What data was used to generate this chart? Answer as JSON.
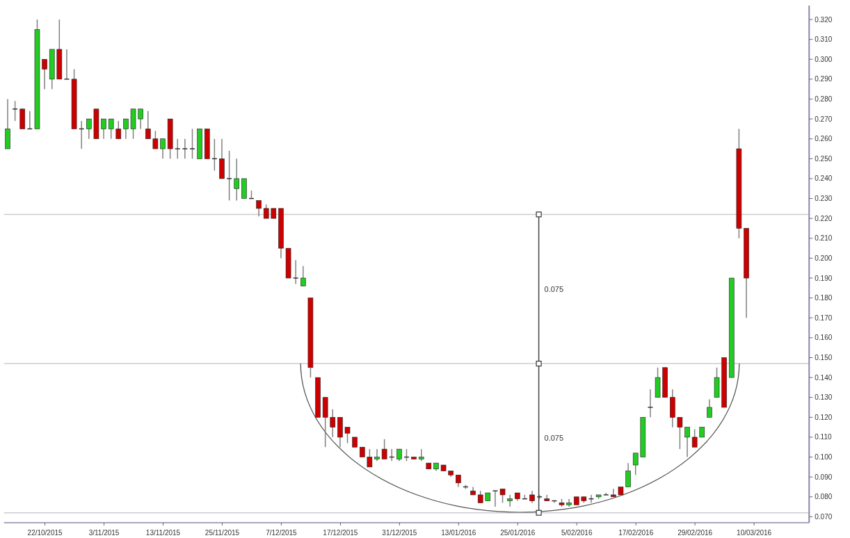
{
  "chart_data": {
    "type": "candlestick",
    "categories": [
      null,
      null,
      null,
      null,
      null,
      "22/10/2015",
      null,
      null,
      null,
      null,
      null,
      null,
      null,
      "3/11/2015",
      null,
      null,
      null,
      null,
      null,
      null,
      null,
      "13/11/2015",
      null,
      null,
      null,
      null,
      null,
      null,
      null,
      "25/11/2015",
      null,
      null,
      null,
      null,
      null,
      null,
      null,
      "7/12/2015",
      null,
      null,
      null,
      null,
      null,
      null,
      null,
      "17/12/2015",
      null,
      null,
      null,
      null,
      null,
      null,
      null,
      "31/12/2015",
      null,
      null,
      null,
      null,
      null,
      null,
      null,
      "13/01/2016",
      null,
      null,
      null,
      null,
      null,
      null,
      null,
      "25/01/2016",
      null,
      null,
      null,
      null,
      null,
      null,
      null,
      "5/02/2016",
      null,
      null,
      null,
      null,
      null,
      null,
      null,
      "17/02/2016",
      null,
      null,
      null,
      null,
      null,
      null,
      null,
      "29/02/2016",
      null,
      null,
      null,
      null,
      null,
      null,
      null,
      "10/03/2016",
      null,
      null,
      null,
      null,
      null,
      null,
      null
    ],
    "ohlc": [
      [
        0.255,
        0.28,
        0.255,
        0.265
      ],
      [
        0.275,
        0.279,
        0.269,
        0.275
      ],
      [
        0.275,
        0.275,
        0.265,
        0.265
      ],
      [
        0.265,
        0.274,
        0.265,
        0.265
      ],
      [
        0.265,
        0.32,
        0.265,
        0.315
      ],
      [
        0.3,
        0.3,
        0.285,
        0.295
      ],
      [
        0.29,
        0.305,
        0.285,
        0.305
      ],
      [
        0.305,
        0.32,
        0.29,
        0.29
      ],
      [
        0.29,
        0.305,
        0.29,
        0.29
      ],
      [
        0.29,
        0.295,
        0.265,
        0.265
      ],
      [
        0.265,
        0.269,
        0.255,
        0.265
      ],
      [
        0.265,
        0.27,
        0.26,
        0.27
      ],
      [
        0.275,
        0.275,
        0.26,
        0.26
      ],
      [
        0.265,
        0.27,
        0.26,
        0.27
      ],
      [
        0.265,
        0.27,
        0.26,
        0.27
      ],
      [
        0.265,
        0.269,
        0.26,
        0.26
      ],
      [
        0.265,
        0.27,
        0.26,
        0.27
      ],
      [
        0.265,
        0.275,
        0.26,
        0.275
      ],
      [
        0.27,
        0.275,
        0.265,
        0.275
      ],
      [
        0.265,
        0.274,
        0.26,
        0.26
      ],
      [
        0.26,
        0.264,
        0.255,
        0.255
      ],
      [
        0.255,
        0.26,
        0.25,
        0.26
      ],
      [
        0.27,
        0.27,
        0.25,
        0.255
      ],
      [
        0.255,
        0.26,
        0.25,
        0.255
      ],
      [
        0.255,
        0.26,
        0.25,
        0.255
      ],
      [
        0.255,
        0.265,
        0.25,
        0.255
      ],
      [
        0.25,
        0.265,
        0.25,
        0.265
      ],
      [
        0.265,
        0.265,
        0.25,
        0.25
      ],
      [
        0.25,
        0.26,
        0.244,
        0.25
      ],
      [
        0.25,
        0.26,
        0.24,
        0.24
      ],
      [
        0.24,
        0.254,
        0.229,
        0.24
      ],
      [
        0.235,
        0.25,
        0.229,
        0.24
      ],
      [
        0.23,
        0.24,
        0.23,
        0.24
      ],
      [
        0.23,
        0.234,
        0.23,
        0.23
      ],
      [
        0.229,
        0.229,
        0.221,
        0.225
      ],
      [
        0.225,
        0.227,
        0.22,
        0.22
      ],
      [
        0.225,
        0.225,
        0.22,
        0.22
      ],
      [
        0.225,
        0.225,
        0.2,
        0.205
      ],
      [
        0.205,
        0.205,
        0.19,
        0.19
      ],
      [
        0.19,
        0.199,
        0.187,
        0.19
      ],
      [
        0.186,
        0.196,
        0.186,
        0.19
      ],
      [
        0.18,
        0.18,
        0.14,
        0.145
      ],
      [
        0.14,
        0.14,
        0.12,
        0.12
      ],
      [
        0.13,
        0.13,
        0.105,
        0.12
      ],
      [
        0.12,
        0.124,
        0.11,
        0.115
      ],
      [
        0.12,
        0.12,
        0.105,
        0.11
      ],
      [
        0.115,
        0.115,
        0.107,
        0.112
      ],
      [
        0.11,
        0.11,
        0.105,
        0.105
      ],
      [
        0.105,
        0.105,
        0.1,
        0.1
      ],
      [
        0.1,
        0.104,
        0.095,
        0.095
      ],
      [
        0.099,
        0.104,
        0.098,
        0.1
      ],
      [
        0.104,
        0.109,
        0.099,
        0.099
      ],
      [
        0.1,
        0.104,
        0.098,
        0.1
      ],
      [
        0.099,
        0.104,
        0.098,
        0.104
      ],
      [
        0.1,
        0.104,
        0.098,
        0.1
      ],
      [
        0.1,
        0.1,
        0.099,
        0.099
      ],
      [
        0.099,
        0.104,
        0.098,
        0.1
      ],
      [
        0.097,
        0.097,
        0.094,
        0.094
      ],
      [
        0.094,
        0.097,
        0.093,
        0.097
      ],
      [
        0.096,
        0.096,
        0.093,
        0.093
      ],
      [
        0.093,
        0.093,
        0.09,
        0.091
      ],
      [
        0.091,
        0.091,
        0.085,
        0.087
      ],
      [
        0.085,
        0.086,
        0.084,
        0.085
      ],
      [
        0.083,
        0.085,
        0.081,
        0.081
      ],
      [
        0.081,
        0.083,
        0.077,
        0.077
      ],
      [
        0.078,
        0.082,
        0.078,
        0.082
      ],
      [
        0.083,
        0.083,
        0.075,
        0.083
      ],
      [
        0.084,
        0.084,
        0.077,
        0.081
      ],
      [
        0.078,
        0.081,
        0.075,
        0.079
      ],
      [
        0.082,
        0.082,
        0.078,
        0.079
      ],
      [
        0.079,
        0.081,
        0.079,
        0.079
      ],
      [
        0.081,
        0.083,
        0.077,
        0.078
      ],
      [
        0.08,
        0.081,
        0.079,
        0.08
      ],
      [
        0.079,
        0.081,
        0.078,
        0.078
      ],
      [
        0.078,
        0.078,
        0.077,
        0.078
      ],
      [
        0.077,
        0.079,
        0.075,
        0.076
      ],
      [
        0.076,
        0.079,
        0.075,
        0.077
      ],
      [
        0.08,
        0.08,
        0.076,
        0.076
      ],
      [
        0.08,
        0.08,
        0.077,
        0.078
      ],
      [
        0.079,
        0.081,
        0.077,
        0.079
      ],
      [
        0.08,
        0.081,
        0.079,
        0.081
      ],
      [
        0.081,
        0.082,
        0.081,
        0.081
      ],
      [
        0.081,
        0.084,
        0.08,
        0.08
      ],
      [
        0.085,
        0.085,
        0.081,
        0.081
      ],
      [
        0.085,
        0.097,
        0.085,
        0.093
      ],
      [
        0.096,
        0.102,
        0.091,
        0.102
      ],
      [
        0.1,
        0.12,
        0.1,
        0.12
      ],
      [
        0.125,
        0.134,
        0.12,
        0.125
      ],
      [
        0.13,
        0.145,
        0.13,
        0.14
      ],
      [
        0.145,
        0.145,
        0.13,
        0.13
      ],
      [
        0.13,
        0.134,
        0.115,
        0.12
      ],
      [
        0.12,
        0.12,
        0.104,
        0.115
      ],
      [
        0.11,
        0.115,
        0.1,
        0.115
      ],
      [
        0.11,
        0.114,
        0.105,
        0.105
      ],
      [
        0.11,
        0.115,
        0.11,
        0.115
      ],
      [
        0.12,
        0.129,
        0.12,
        0.125
      ],
      [
        0.13,
        0.145,
        0.13,
        0.14
      ],
      [
        0.15,
        0.15,
        0.125,
        0.125
      ],
      [
        0.14,
        0.19,
        0.14,
        0.19
      ],
      [
        0.255,
        0.265,
        0.21,
        0.215
      ],
      [
        0.215,
        0.215,
        0.17,
        0.19
      ],
      null,
      null,
      null,
      null,
      null,
      null,
      null,
      null
    ],
    "colors": [
      "#22cc22",
      "#333333",
      "#cc0000",
      "#333333",
      "#22cc22",
      "#cc0000",
      "#22cc22",
      "#cc0000",
      "#333333",
      "#cc0000",
      "#333333",
      "#22cc22",
      "#cc0000",
      "#22cc22",
      "#22cc22",
      "#cc0000",
      "#22cc22",
      "#22cc22",
      "#22cc22",
      "#cc0000",
      "#cc0000",
      "#22cc22",
      "#cc0000",
      "#333333",
      "#333333",
      "#333333",
      "#22cc22",
      "#cc0000",
      "#333333",
      "#cc0000",
      "#333333",
      "#22cc22",
      "#22cc22",
      "#333333",
      "#cc0000",
      "#cc0000",
      "#cc0000",
      "#cc0000",
      "#cc0000",
      "#333333",
      "#22cc22",
      "#cc0000",
      "#cc0000",
      "#cc0000",
      "#cc0000",
      "#cc0000",
      "#cc0000",
      "#cc0000",
      "#cc0000",
      "#cc0000",
      "#22cc22",
      "#cc0000",
      "#333333",
      "#22cc22",
      "#333333",
      "#cc0000",
      "#22cc22",
      "#cc0000",
      "#22cc22",
      "#cc0000",
      "#cc0000",
      "#cc0000",
      "#333333",
      "#cc0000",
      "#cc0000",
      "#22cc22",
      "#333333",
      "#cc0000",
      "#22cc22",
      "#cc0000",
      "#333333",
      "#cc0000",
      "#333333",
      "#cc0000",
      "#333333",
      "#cc0000",
      "#22cc22",
      "#cc0000",
      "#cc0000",
      "#333333",
      "#22cc22",
      "#333333",
      "#cc0000",
      "#cc0000",
      "#22cc22",
      "#22cc22",
      "#22cc22",
      "#333333",
      "#22cc22",
      "#cc0000",
      "#cc0000",
      "#cc0000",
      "#22cc22",
      "#cc0000",
      "#22cc22",
      "#22cc22",
      "#22cc22",
      "#cc0000",
      "#22cc22",
      "#cc0000",
      "#cc0000",
      null,
      null,
      null,
      null,
      null,
      null,
      null,
      null
    ],
    "ylim": [
      0.067,
      0.327
    ],
    "yticks": [
      {
        "value": 0.07,
        "label": "0.070"
      },
      {
        "value": 0.08,
        "label": "0.080"
      },
      {
        "value": 0.09,
        "label": "0.090"
      },
      {
        "value": 0.1,
        "label": "0.100"
      },
      {
        "value": 0.11,
        "label": "0.110"
      },
      {
        "value": 0.12,
        "label": "0.120"
      },
      {
        "value": 0.13,
        "label": "0.130"
      },
      {
        "value": 0.14,
        "label": "0.140"
      },
      {
        "value": 0.15,
        "label": "0.150"
      },
      {
        "value": 0.16,
        "label": "0.160"
      },
      {
        "value": 0.17,
        "label": "0.170"
      },
      {
        "value": 0.18,
        "label": "0.180"
      },
      {
        "value": 0.19,
        "label": "0.190"
      },
      {
        "value": 0.2,
        "label": "0.200"
      },
      {
        "value": 0.21,
        "label": "0.210"
      },
      {
        "value": 0.22,
        "label": "0.220"
      },
      {
        "value": 0.23,
        "label": "0.230"
      },
      {
        "value": 0.24,
        "label": "0.240"
      },
      {
        "value": 0.25,
        "label": "0.250"
      },
      {
        "value": 0.26,
        "label": "0.260"
      },
      {
        "value": 0.27,
        "label": "0.270"
      },
      {
        "value": 0.28,
        "label": "0.280"
      },
      {
        "value": 0.29,
        "label": "0.290"
      },
      {
        "value": 0.3,
        "label": "0.300"
      },
      {
        "value": 0.31,
        "label": "0.310"
      },
      {
        "value": 0.32,
        "label": "0.320"
      }
    ],
    "ref_lines": [
      {
        "axis": "y",
        "value": 0.222,
        "color": "#cccccc"
      },
      {
        "axis": "y",
        "value": 0.147,
        "color": "#cccccc"
      },
      {
        "axis": "y",
        "value": 0.072,
        "color": "#cccccc"
      }
    ],
    "annotations": [
      "0.075",
      "0.075"
    ]
  }
}
